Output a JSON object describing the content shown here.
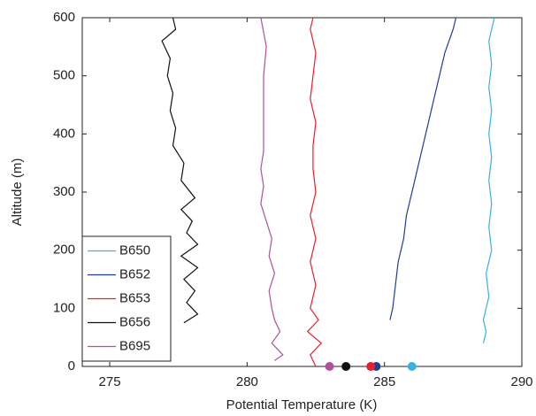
{
  "chart_data": {
    "type": "line",
    "xlabel": "Potential Temperature (K)",
    "ylabel": "Altitude (m)",
    "xlim": [
      274,
      290
    ],
    "xticks": [
      275,
      280,
      285,
      290
    ],
    "ylim": [
      0,
      600
    ],
    "yticks": [
      0,
      100,
      200,
      300,
      400,
      500,
      600
    ],
    "grid": false,
    "legend": "lower left",
    "series": [
      {
        "name": "B650",
        "color": "#35b3e3",
        "x": [
          288.6,
          288.7,
          288.6,
          288.8,
          288.7,
          288.9,
          288.8,
          288.9,
          288.8,
          288.9,
          288.8,
          288.9,
          288.8,
          288.9,
          288.8,
          289.0
        ],
        "values": [
          40,
          60,
          80,
          120,
          160,
          200,
          240,
          280,
          320,
          360,
          400,
          440,
          480,
          520,
          560,
          600
        ],
        "surface": {
          "x": 286.0,
          "y": 0
        }
      },
      {
        "name": "B652",
        "color": "#1f3d99",
        "x": [
          285.2,
          285.3,
          285.4,
          285.5,
          285.7,
          285.8,
          286.0,
          286.2,
          286.4,
          286.6,
          286.8,
          287.0,
          287.2,
          287.5,
          287.6
        ],
        "values": [
          80,
          100,
          140,
          180,
          220,
          260,
          300,
          340,
          380,
          420,
          460,
          500,
          540,
          580,
          600
        ],
        "surface": {
          "x": 284.7,
          "y": 0
        }
      },
      {
        "name": "B653",
        "color": "#e8202a",
        "x": [
          282.5,
          282.3,
          282.7,
          282.2,
          282.6,
          282.3,
          282.5,
          282.3,
          282.5,
          282.3,
          282.5,
          282.4,
          282.4,
          282.5,
          282.3,
          282.4,
          282.5,
          282.3,
          282.4
        ],
        "values": [
          0,
          20,
          40,
          60,
          80,
          100,
          140,
          180,
          220,
          260,
          300,
          340,
          380,
          420,
          460,
          500,
          540,
          580,
          600
        ],
        "surface": {
          "x": 284.5,
          "y": 0
        }
      },
      {
        "name": "B656",
        "color": "#111111",
        "x": [
          277.7,
          278.2,
          277.8,
          278.1,
          277.7,
          278.2,
          277.6,
          278.2,
          277.8,
          278.0,
          277.6,
          278.1,
          277.6,
          277.7,
          277.3,
          277.4,
          277.2,
          277.3,
          277.1,
          277.2,
          276.9,
          277.4,
          277.3
        ],
        "values": [
          75,
          90,
          110,
          130,
          150,
          170,
          190,
          210,
          230,
          250,
          270,
          290,
          320,
          350,
          380,
          410,
          440,
          470,
          500,
          530,
          560,
          580,
          600
        ],
        "surface": {
          "x": 283.6,
          "y": 0
        }
      },
      {
        "name": "B695",
        "color": "#b0509e",
        "x": [
          281.0,
          281.3,
          280.9,
          281.2,
          281.0,
          280.9,
          280.8,
          281.0,
          280.8,
          280.9,
          280.7,
          280.5,
          280.6,
          280.5,
          280.6,
          280.6,
          280.6,
          280.6,
          280.7,
          280.5
        ],
        "values": [
          10,
          20,
          40,
          60,
          80,
          100,
          130,
          160,
          190,
          220,
          250,
          280,
          310,
          340,
          370,
          400,
          450,
          500,
          550,
          600
        ],
        "surface": {
          "x": 283.0,
          "y": 0
        }
      }
    ]
  }
}
